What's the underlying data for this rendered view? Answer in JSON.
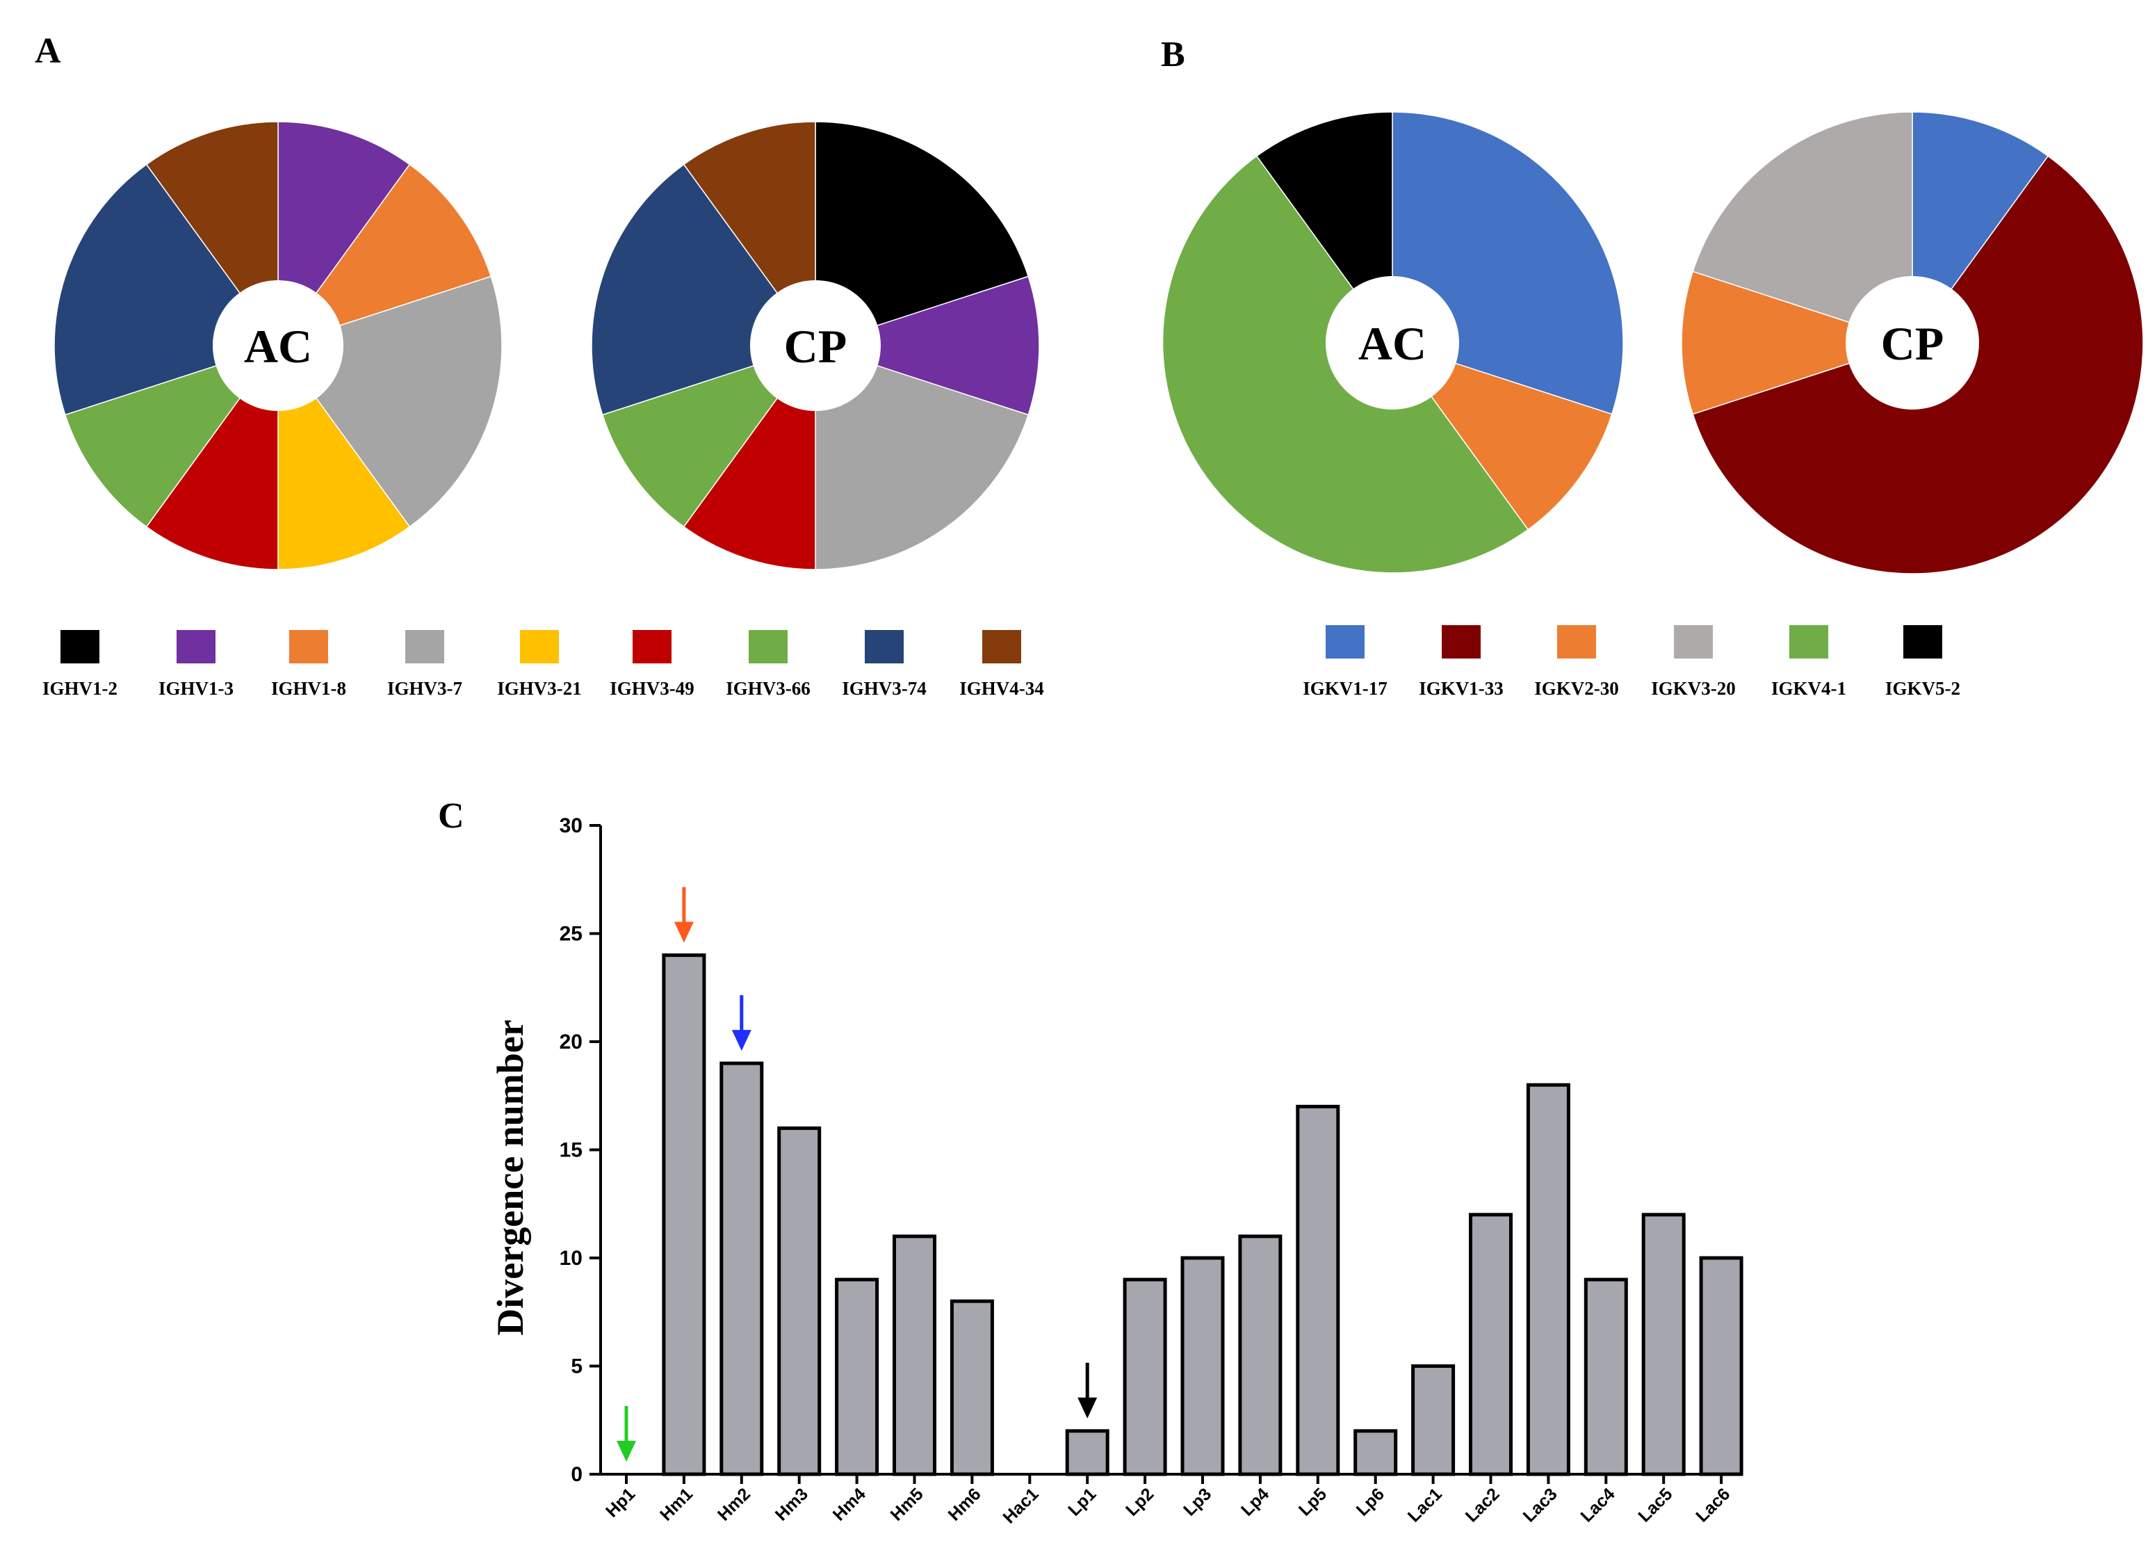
{
  "panels": {
    "A": {
      "letter": "A"
    },
    "B": {
      "letter": "B"
    },
    "C": {
      "letter": "C"
    }
  },
  "chart_data": [
    {
      "panel": "A",
      "type": "pie",
      "donut": true,
      "charts": [
        {
          "center_label": "AC",
          "slices": [
            {
              "label": "IGHV1-3",
              "value": 1
            },
            {
              "label": "IGHV1-8",
              "value": 1
            },
            {
              "label": "IGHV3-7",
              "value": 2
            },
            {
              "label": "IGHV3-21",
              "value": 1
            },
            {
              "label": "IGHV3-49",
              "value": 1
            },
            {
              "label": "IGHV3-66",
              "value": 1
            },
            {
              "label": "IGHV3-74",
              "value": 2
            },
            {
              "label": "IGHV4-34",
              "value": 1
            }
          ]
        },
        {
          "center_label": "CP",
          "slices": [
            {
              "label": "IGHV1-2",
              "value": 2
            },
            {
              "label": "IGHV1-3",
              "value": 1
            },
            {
              "label": "IGHV3-7",
              "value": 2
            },
            {
              "label": "IGHV3-49",
              "value": 1
            },
            {
              "label": "IGHV3-66",
              "value": 1
            },
            {
              "label": "IGHV3-74",
              "value": 2
            },
            {
              "label": "IGHV4-34",
              "value": 1
            }
          ]
        }
      ],
      "legend": [
        {
          "label": "IGHV1-2",
          "color": "#000000"
        },
        {
          "label": "IGHV1-3",
          "color": "#7030A0"
        },
        {
          "label": "IGHV1-8",
          "color": "#ED7D31"
        },
        {
          "label": "IGHV3-7",
          "color": "#A5A5A5"
        },
        {
          "label": "IGHV3-21",
          "color": "#FFC000"
        },
        {
          "label": "IGHV3-49",
          "color": "#C00000"
        },
        {
          "label": "IGHV3-66",
          "color": "#70AD47"
        },
        {
          "label": "IGHV3-74",
          "color": "#264478"
        },
        {
          "label": "IGHV4-34",
          "color": "#843C0C"
        }
      ],
      "legend_position": "bottom"
    },
    {
      "panel": "B",
      "type": "pie",
      "donut": true,
      "charts": [
        {
          "center_label": "AC",
          "slices": [
            {
              "label": "IGKV1-17",
              "value": 3
            },
            {
              "label": "IGKV2-30",
              "value": 1
            },
            {
              "label": "IGKV4-1",
              "value": 5
            },
            {
              "label": "IGKV5-2",
              "value": 1
            }
          ]
        },
        {
          "center_label": "CP",
          "slices": [
            {
              "label": "IGKV1-17",
              "value": 1
            },
            {
              "label": "IGKV1-33",
              "value": 6
            },
            {
              "label": "IGKV2-30",
              "value": 1
            },
            {
              "label": "IGKV3-20",
              "value": 2
            }
          ]
        }
      ],
      "legend": [
        {
          "label": "IGKV1-17",
          "color": "#4472C4"
        },
        {
          "label": "IGKV1-33",
          "color": "#7F0000"
        },
        {
          "label": "IGKV2-30",
          "color": "#ED7D31"
        },
        {
          "label": "IGKV3-20",
          "color": "#AEAAAA"
        },
        {
          "label": "IGKV4-1",
          "color": "#70AD47"
        },
        {
          "label": "IGKV5-2",
          "color": "#000000"
        }
      ],
      "legend_position": "bottom"
    },
    {
      "panel": "C",
      "type": "bar",
      "categories": [
        "Hp1",
        "Hm1",
        "Hm2",
        "Hm3",
        "Hm4",
        "Hm5",
        "Hm6",
        "Hac1",
        "Lp1",
        "Lp2",
        "Lp3",
        "Lp4",
        "Lp5",
        "Lp6",
        "Lac1",
        "Lac2",
        "Lac3",
        "Lac4",
        "Lac5",
        "Lac6"
      ],
      "values": [
        0,
        24,
        19,
        16,
        9,
        11,
        8,
        0,
        2,
        9,
        10,
        11,
        17,
        2,
        5,
        12,
        18,
        9,
        12,
        10
      ],
      "ylabel": "Divergence number",
      "xlabel": "",
      "ylim": [
        0,
        30
      ],
      "yticks": [
        0,
        5,
        10,
        15,
        20,
        25,
        30
      ],
      "bar_color": "#A6A6AE",
      "grid": false,
      "arrows": [
        {
          "category": "Hp1",
          "color": "#22CC22"
        },
        {
          "category": "Hm1",
          "color": "#FF5A1E"
        },
        {
          "category": "Hm2",
          "color": "#1F2FFF"
        },
        {
          "category": "Lp1",
          "color": "#000000"
        }
      ]
    }
  ]
}
